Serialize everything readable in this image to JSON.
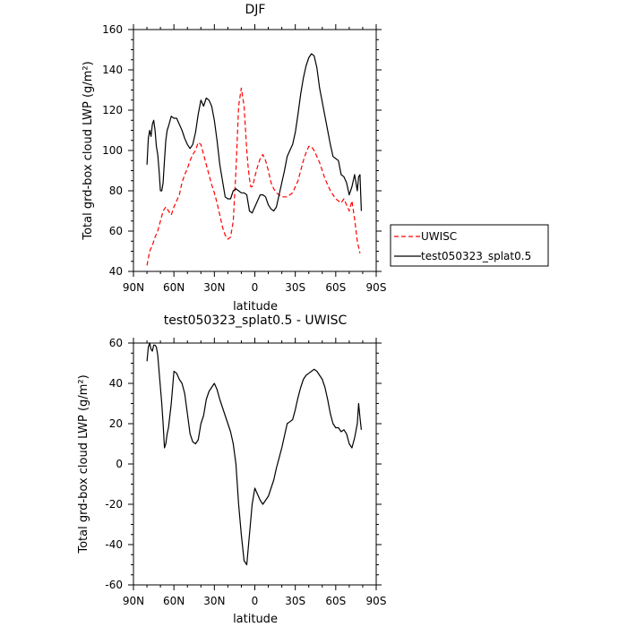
{
  "chart_data": [
    {
      "type": "line",
      "title": "DJF",
      "xlabel": "latitude",
      "ylabel": "Total grd-box cloud LWP (g/m²)",
      "xlim": [
        90,
        -90
      ],
      "ylim": [
        40,
        160
      ],
      "x_tick_values": [
        90,
        60,
        30,
        0,
        -30,
        -60,
        -90
      ],
      "x_tick_labels": [
        "90N",
        "60N",
        "30N",
        "0",
        "30S",
        "60S",
        "90S"
      ],
      "y_ticks": [
        40,
        60,
        80,
        100,
        120,
        140,
        160
      ],
      "legend_placement": "right",
      "series": [
        {
          "name": "UWISC",
          "color": "#ff0000",
          "dash": "dashed",
          "x": [
            80,
            78,
            76,
            74,
            72,
            70,
            68,
            66,
            64,
            62,
            60,
            58,
            56,
            54,
            52,
            50,
            48,
            46,
            44,
            42,
            40,
            38,
            36,
            34,
            32,
            30,
            28,
            26,
            24,
            22,
            20,
            18,
            16,
            14,
            12,
            10,
            8,
            6,
            5,
            4,
            3,
            2,
            1,
            0,
            -2,
            -4,
            -6,
            -8,
            -10,
            -12,
            -14,
            -16,
            -18,
            -20,
            -22,
            -24,
            -26,
            -28,
            -30,
            -32,
            -34,
            -36,
            -38,
            -40,
            -42,
            -44,
            -46,
            -48,
            -50,
            -52,
            -54,
            -56,
            -58,
            -60,
            -62,
            -64,
            -66,
            -68,
            -70,
            -72,
            -74,
            -76,
            -78
          ],
          "y": [
            43,
            50,
            53,
            57,
            60,
            65,
            70,
            72,
            70,
            68,
            72,
            75,
            78,
            84,
            88,
            91,
            95,
            98,
            100,
            104,
            103,
            98,
            93,
            88,
            83,
            79,
            74,
            68,
            62,
            58,
            56,
            57,
            65,
            90,
            122,
            131,
            122,
            100,
            92,
            86,
            82,
            82,
            84,
            87,
            92,
            96,
            98,
            95,
            90,
            84,
            81,
            79,
            78,
            77,
            77,
            77,
            78,
            79,
            82,
            85,
            90,
            95,
            99,
            102,
            102,
            100,
            97,
            94,
            90,
            86,
            83,
            80,
            78,
            76,
            75,
            74,
            76,
            73,
            70,
            75,
            66,
            55,
            49
          ]
        },
        {
          "name": "test050323_splat0.5",
          "color": "#000000",
          "dash": "solid",
          "x": [
            80,
            79,
            78,
            77,
            76,
            75,
            74,
            73,
            72,
            71,
            70,
            69,
            68,
            67,
            66,
            65,
            64,
            62,
            60,
            58,
            56,
            54,
            52,
            50,
            48,
            46,
            44,
            42,
            40,
            38,
            36,
            34,
            32,
            30,
            28,
            26,
            24,
            22,
            20,
            18,
            16,
            14,
            12,
            10,
            8,
            6,
            4,
            2,
            0,
            -2,
            -4,
            -6,
            -8,
            -10,
            -12,
            -14,
            -16,
            -18,
            -20,
            -22,
            -24,
            -26,
            -28,
            -30,
            -32,
            -34,
            -36,
            -38,
            -40,
            -42,
            -44,
            -46,
            -48,
            -50,
            -52,
            -54,
            -56,
            -58,
            -60,
            -62,
            -64,
            -66,
            -68,
            -70,
            -72,
            -74,
            -76,
            -77,
            -78,
            -79
          ],
          "y": [
            93,
            106,
            110,
            107,
            113,
            115,
            110,
            102,
            98,
            90,
            80,
            80,
            84,
            95,
            105,
            110,
            112,
            117,
            116,
            116,
            113,
            110,
            106,
            103,
            101,
            103,
            109,
            118,
            125,
            122,
            126,
            125,
            122,
            115,
            105,
            93,
            85,
            77,
            76,
            76,
            80,
            81,
            80,
            79,
            79,
            78,
            70,
            69,
            72,
            75,
            78,
            78,
            77,
            73,
            71,
            70,
            72,
            78,
            84,
            90,
            97,
            100,
            103,
            109,
            118,
            128,
            136,
            142,
            146,
            148,
            147,
            141,
            131,
            124,
            117,
            110,
            103,
            97,
            96,
            95,
            88,
            87,
            84,
            78,
            82,
            88,
            80,
            87,
            88,
            70
          ]
        }
      ]
    },
    {
      "type": "line",
      "title": "test050323_splat0.5 - UWISC",
      "xlabel": "latitude",
      "ylabel": "Total grd-box cloud LWP (g/m²)",
      "xlim": [
        90,
        -90
      ],
      "ylim": [
        -60,
        60
      ],
      "x_tick_values": [
        90,
        60,
        30,
        0,
        -30,
        -60,
        -90
      ],
      "x_tick_labels": [
        "90N",
        "60N",
        "30N",
        "0",
        "30S",
        "60S",
        "90S"
      ],
      "y_ticks": [
        -60,
        -40,
        -20,
        0,
        20,
        40,
        60
      ],
      "series": [
        {
          "color": "#000000",
          "dash": "solid",
          "x": [
            80,
            79,
            78,
            77,
            76,
            75,
            74,
            73,
            72,
            71,
            70,
            69,
            68,
            67,
            66,
            65,
            64,
            62,
            60,
            58,
            56,
            54,
            52,
            50,
            48,
            46,
            44,
            42,
            40,
            38,
            36,
            34,
            32,
            30,
            28,
            26,
            24,
            22,
            20,
            18,
            16,
            14,
            12,
            10,
            8,
            6,
            4,
            2,
            0,
            -2,
            -4,
            -6,
            -8,
            -10,
            -12,
            -14,
            -16,
            -18,
            -20,
            -22,
            -24,
            -26,
            -28,
            -30,
            -32,
            -34,
            -36,
            -38,
            -40,
            -42,
            -44,
            -46,
            -48,
            -50,
            -52,
            -54,
            -56,
            -58,
            -60,
            -62,
            -64,
            -66,
            -68,
            -70,
            -72,
            -74,
            -76,
            -77,
            -78,
            -79
          ],
          "y": [
            51,
            58,
            60,
            57,
            56,
            59,
            59,
            58,
            54,
            46,
            38,
            30,
            20,
            8,
            10,
            15,
            18,
            30,
            46,
            45,
            42,
            40,
            35,
            25,
            15,
            11,
            10,
            12,
            20,
            24,
            32,
            36,
            38,
            40,
            37,
            32,
            28,
            24,
            20,
            16,
            10,
            0,
            -20,
            -35,
            -48,
            -50,
            -35,
            -20,
            -12,
            -15,
            -18,
            -20,
            -18,
            -16,
            -12,
            -8,
            -2,
            3,
            8,
            14,
            20,
            21,
            22,
            27,
            33,
            38,
            42,
            44,
            45,
            46,
            47,
            46,
            44,
            42,
            38,
            32,
            25,
            20,
            18,
            18,
            16,
            17,
            15,
            10,
            8,
            13,
            20,
            30,
            23,
            17
          ]
        }
      ]
    }
  ]
}
